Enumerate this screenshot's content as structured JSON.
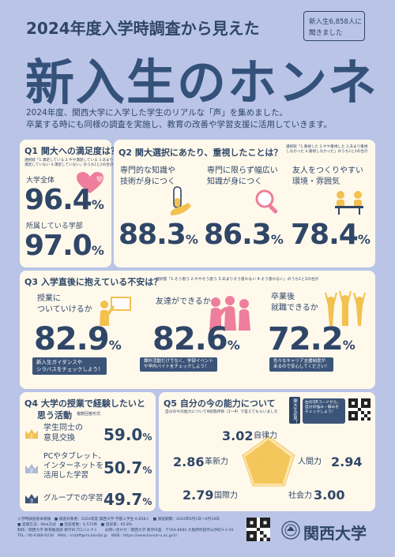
{
  "header": {
    "subtitle": "2024年度入学時調査から見えた",
    "badge_line1": "新入生6,858人に",
    "badge_line2": "聞きました",
    "title": "新入生のホンネ",
    "intro_line1": "2024年度、関西大学に入学した学生のリアルな「声」を集めました。",
    "intro_line2": "卒業する時にも同様の調査を実施し、教育の改善や学習支援に活用していきます。"
  },
  "q1": {
    "title": "Q1 関大への満足度は？",
    "note_line1": "選択肢「1.満足している 2.やや満足している 3.あまり",
    "note_line2": "満足していない 4.満足していない」のうち1と2の合計",
    "label_all": "大学全体",
    "value_all": "96.4",
    "label_faculty": "所属している学部",
    "value_faculty": "97.0",
    "unit": "%"
  },
  "q2": {
    "title": "Q2 関大選択にあたり、重視したことは？",
    "note_line1": "選択肢「1.重視した 2.やや重視した 3.あまり重視",
    "note_line2": "しなかった 4.重視しなかった」のうち1と2の合計",
    "items": [
      {
        "label1": "専門的な知識や",
        "label2": "技術が身につく",
        "value": "88.3"
      },
      {
        "label1": "専門に限らず幅広い",
        "label2": "知識が身につく",
        "value": "86.3"
      },
      {
        "label1": "友人をつくりやすい",
        "label2": "環境・雰囲気",
        "value": "78.4"
      }
    ],
    "unit": "%"
  },
  "q3": {
    "title": "Q3 入学直後に抱えている不安は？",
    "note": "選択肢「1.そう思う 2.ややそう思う 3.あまりそう思わない 4.そう思わない」のうち1と2の合計",
    "items": [
      {
        "label1": "授業に",
        "label2": "ついていけるか",
        "value": "82.9",
        "pill1": "新入生ガイダンスや",
        "pill2": "シラバスをチェックしよう！"
      },
      {
        "label1": "友達ができるか",
        "label2": "",
        "value": "82.6",
        "pill1": "課外活動だけでなく、学部イベント",
        "pill2": "や学内バイトをチェックしよう！"
      },
      {
        "label1": "卒業後",
        "label2": "就職できるか",
        "value": "72.2",
        "pill1": "色々なキャリア支援制度が",
        "pill2": "あるので安心してください！"
      }
    ],
    "unit": "%"
  },
  "q4": {
    "title1": "Q4 大学の授業で経験したいと",
    "title2": "思う活動",
    "note": "複数回答形式",
    "items": [
      {
        "rank": "1",
        "label1": "学生同士の",
        "label2": "意見交換",
        "value": "59.0"
      },
      {
        "rank": "2",
        "label1": "PCやタブレット、",
        "label2": "インターネットを",
        "label3": "活用した学習",
        "value": "50.7"
      },
      {
        "rank": "3",
        "label1": "グループでの学習",
        "label2": "",
        "value": "49.7"
      }
    ],
    "unit": "%"
  },
  "q5": {
    "title": "Q5 自分の今の能力について",
    "note": "自分の今の能力について4段階評価（1〜4）で答えてもらいました",
    "side_badge": "関大生必見！",
    "qr_text1": "右のQRコードから、",
    "qr_text2": "自分の強み・弱みを",
    "qr_text3": "チェックしよう！",
    "axes": [
      {
        "name": "自律力",
        "value": "3.02"
      },
      {
        "name": "人間力",
        "value": "2.94"
      },
      {
        "name": "社会力",
        "value": "3.00"
      },
      {
        "name": "国際力",
        "value": "2.79"
      },
      {
        "name": "革新力",
        "value": "2.86"
      }
    ]
  },
  "footer": {
    "line1": "入学時調査基本情報　■ 調査対象者：2024年度 関西大学 学部入学生 6,858人　■ 調査期間：2024年4月1日〜4月18日",
    "line2": "■ 実施方法：Web方式　■ 回答者数：6,572件　■ 回収率：95.8%",
    "line3": "制作／関西大学 教育推進部 教学IRプロジェクト　　お問い合わせ／関西大学 教学IR室　〒564-8680 大阪府吹田市山手町3-3-35",
    "line4": "TEL／06-6368-0230　MAIL／irstaff@ml.kandai.jp　WEB／https://www.kansai-u.ac.jp/ir/",
    "university": "関西大学"
  },
  "colors": {
    "background": "#b9c4e6",
    "card": "#fff9ec",
    "navy": "#2f4667",
    "accent_yellow": "#f2c14e",
    "accent_pink": "#ee7e9c"
  }
}
